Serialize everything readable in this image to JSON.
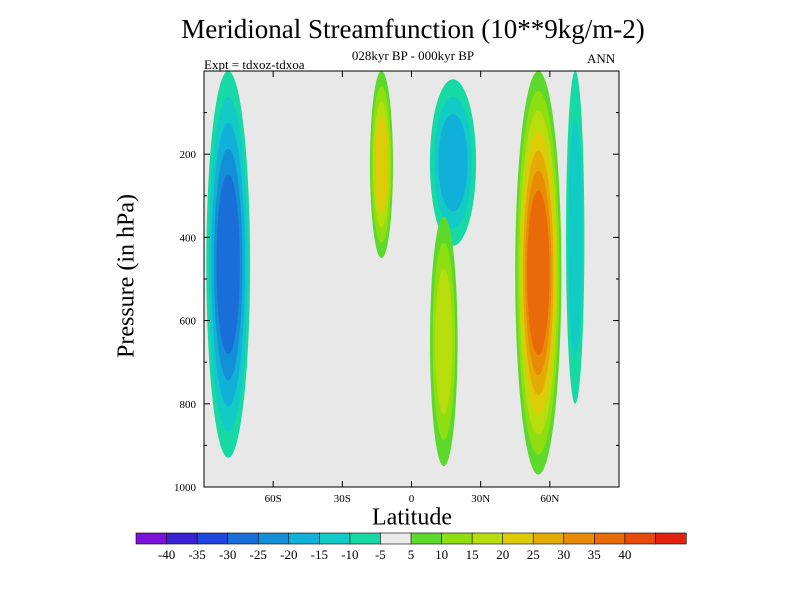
{
  "chart_data": {
    "type": "heatmap",
    "title": "Meridional Streamfunction (10**9kg/m-2)",
    "subtitle": "028kyr BP - 000kyr BP",
    "left_annotation": "Expt = tdxoz-tdxoa",
    "right_annotation": "ANN",
    "xlabel": "Latitude",
    "ylabel": "Pressure (in hPa)",
    "x_ticks": [
      "60S",
      "30S",
      "0",
      "30N",
      "60N"
    ],
    "x_tick_values": [
      -60,
      -30,
      0,
      30,
      60
    ],
    "y_ticks": [
      "200",
      "400",
      "600",
      "800",
      "1000"
    ],
    "y_tick_values": [
      200,
      400,
      600,
      800,
      1000
    ],
    "xlim": [
      -90,
      90
    ],
    "ylim": [
      1000,
      0
    ],
    "contour_levels": [
      "-40",
      "-35",
      "-30",
      "-25",
      "-20",
      "-15",
      "-10",
      "-5",
      "5",
      "10",
      "15",
      "20",
      "25",
      "30",
      "35",
      "40"
    ],
    "colorbar_colors": [
      "#7a12d9",
      "#3a22d4",
      "#2146df",
      "#1a6ed8",
      "#138fd6",
      "#11b0d8",
      "#13cbc6",
      "#17d9a4",
      "#ebebeb",
      "#5cd92a",
      "#8ede12",
      "#b8dd0c",
      "#dccb06",
      "#e4ab05",
      "#e88b06",
      "#e96a08",
      "#e84a0a",
      "#e3230d"
    ],
    "background_color": "#e8e8e8",
    "features": [
      {
        "sign": "negative",
        "lat_range": [
          -89,
          -70
        ],
        "pressure_range": [
          0,
          930
        ],
        "min_value": -25
      },
      {
        "sign": "positive",
        "lat_range": [
          -18,
          -8
        ],
        "pressure_range": [
          0,
          450
        ],
        "max_value": 20
      },
      {
        "sign": "negative",
        "lat_range": [
          8,
          28
        ],
        "pressure_range": [
          20,
          420
        ],
        "min_value": -15
      },
      {
        "sign": "positive",
        "lat_range": [
          8,
          20
        ],
        "pressure_range": [
          350,
          950
        ],
        "max_value": 15
      },
      {
        "sign": "positive",
        "lat_range": [
          45,
          65
        ],
        "pressure_range": [
          0,
          970
        ],
        "max_value": 35
      },
      {
        "sign": "negative",
        "lat_range": [
          67,
          75
        ],
        "pressure_range": [
          0,
          800
        ],
        "min_value": -10
      }
    ]
  }
}
